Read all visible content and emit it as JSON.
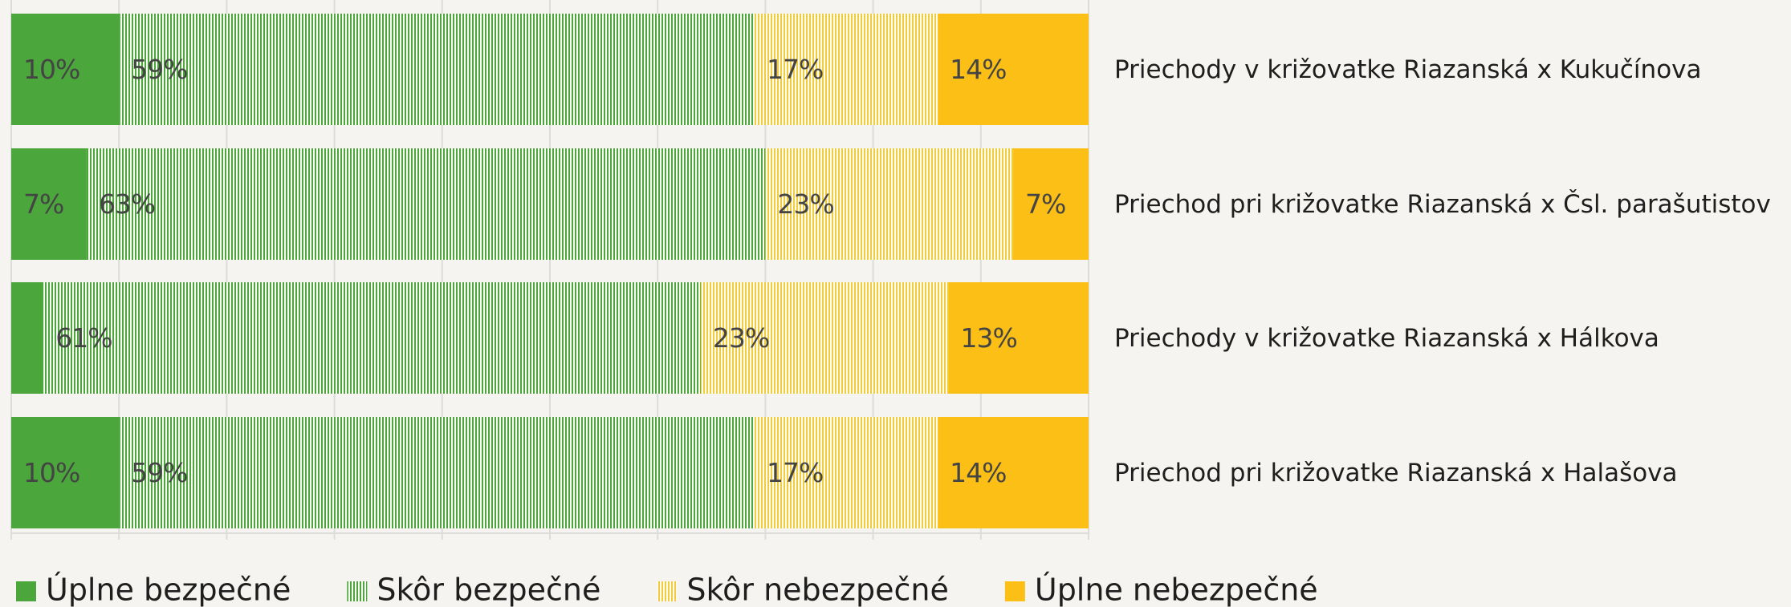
{
  "chart_data": {
    "type": "stacked-bar-horizontal",
    "categories": [
      "Priechody v križovatke Riazanská x Kukučínova",
      "Priechod pri križovatke Riazanská x Čsl. parašutistov",
      "Priechody v križovatke Riazanská x Hálkova",
      "Priechod pri križovatke Riazanská x Halašova"
    ],
    "series": [
      {
        "name": "Úplne bezpečné",
        "color": "#4ba63c",
        "fill": "solid",
        "values": [
          10,
          7,
          3,
          10
        ],
        "value_labels": [
          "10%",
          "7%",
          null,
          "10%"
        ]
      },
      {
        "name": "Skôr bezpečné",
        "color": "#4ba63c",
        "fill": "stripes",
        "values": [
          59,
          63,
          61,
          59
        ],
        "value_labels": [
          "59%",
          "63%",
          "61%",
          "59%"
        ]
      },
      {
        "name": "Skôr nebezpečné",
        "color": "#f3cc3a",
        "fill": "stripes",
        "values": [
          17,
          23,
          23,
          17
        ],
        "value_labels": [
          "17%",
          "23%",
          "23%",
          "17%"
        ]
      },
      {
        "name": "Úplne nebezpečné",
        "color": "#fbbf16",
        "fill": "solid",
        "values": [
          14,
          7,
          13,
          14
        ],
        "value_labels": [
          "14%",
          "7%",
          "13%",
          "14%"
        ]
      }
    ],
    "xlim": [
      0,
      100
    ],
    "xticks": [
      0,
      10,
      20,
      30,
      40,
      50,
      60,
      70,
      80,
      90,
      100
    ],
    "grid": true,
    "legend": "bottom"
  }
}
